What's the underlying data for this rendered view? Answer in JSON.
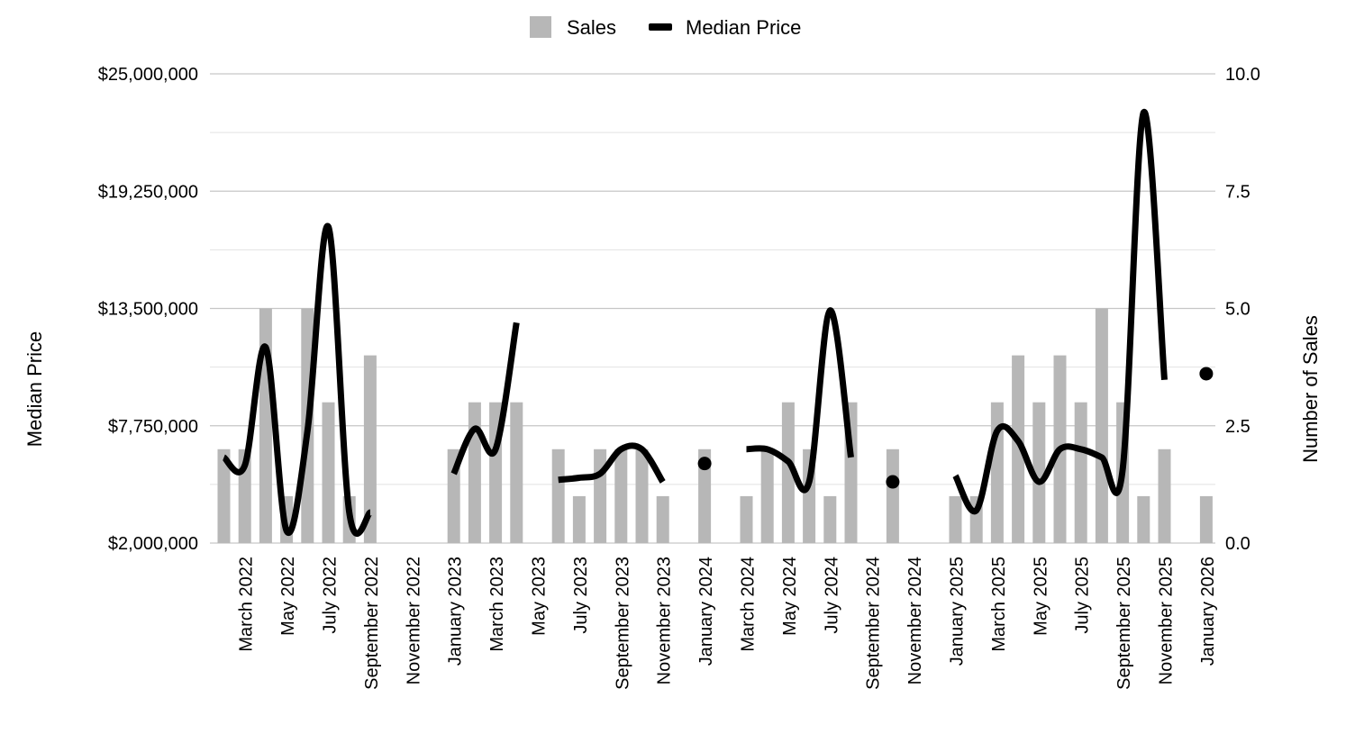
{
  "chart_data": {
    "type": "bar",
    "combo": "bar+line",
    "categories": [
      "Feb 2022",
      "March 2022",
      "Apr 2022",
      "May 2022",
      "Jun 2022",
      "July 2022",
      "Aug 2022",
      "September 2022",
      "Oct 2022",
      "November 2022",
      "Dec 2022",
      "January 2023",
      "Feb 2023",
      "March 2023",
      "Apr 2023",
      "May 2023",
      "Jun 2023",
      "July 2023",
      "Aug 2023",
      "September 2023",
      "Oct 2023",
      "November 2023",
      "Dec 2023",
      "January 2024",
      "Feb 2024",
      "March 2024",
      "Apr 2024",
      "May 2024",
      "Jun 2024",
      "July 2024",
      "Aug 2024",
      "September 2024",
      "Oct 2024",
      "November 2024",
      "Dec 2024",
      "January 2025",
      "Feb 2025",
      "March 2025",
      "Apr 2025",
      "May 2025",
      "Jun 2025",
      "July 2025",
      "Aug 2025",
      "September 2025",
      "Oct 2025",
      "November 2025",
      "Dec 2025",
      "January 2026"
    ],
    "x_tick_labels": [
      "March 2022",
      "May 2022",
      "July 2022",
      "September 2022",
      "November 2022",
      "January 2023",
      "March 2023",
      "May 2023",
      "July 2023",
      "September 2023",
      "November 2023",
      "January 2024",
      "March 2024",
      "May 2024",
      "July 2024",
      "September 2024",
      "November 2024",
      "January 2025",
      "March 2025",
      "May 2025",
      "July 2025",
      "September 2025",
      "November 2025",
      "January 2026"
    ],
    "series": [
      {
        "name": "Sales",
        "type": "bar",
        "axis": "right",
        "color": "#b7b7b7",
        "values": [
          2,
          2,
          5,
          1,
          5,
          3,
          1,
          4,
          null,
          null,
          null,
          2,
          3,
          3,
          3,
          null,
          2,
          1,
          2,
          2,
          2,
          1,
          null,
          2,
          null,
          1,
          2,
          3,
          2,
          1,
          3,
          null,
          2,
          null,
          null,
          1,
          1,
          3,
          4,
          3,
          4,
          3,
          5,
          3,
          1,
          2,
          null,
          1
        ]
      },
      {
        "name": "Median Price",
        "type": "line",
        "axis": "left",
        "color": "#000000",
        "values": [
          6200000,
          5800000,
          11600000,
          2600000,
          7500000,
          17500000,
          3500000,
          3500000,
          null,
          null,
          null,
          5400000,
          7600000,
          6600000,
          12800000,
          null,
          5100000,
          5200000,
          5400000,
          6600000,
          6600000,
          5000000,
          null,
          5900000,
          null,
          6600000,
          6600000,
          6000000,
          5000000,
          13400000,
          6200000,
          null,
          5000000,
          null,
          null,
          5300000,
          3600000,
          7500000,
          7000000,
          5000000,
          6600000,
          6600000,
          6200000,
          5600000,
          23100000,
          10000000,
          null,
          10300000
        ]
      }
    ],
    "y_left": {
      "label": "Median Price",
      "ylim": [
        2000000,
        25000000
      ],
      "ticks": [
        "$2,000,000",
        "$7,750,000",
        "$13,500,000",
        "$19,250,000",
        "$25,000,000"
      ]
    },
    "y_right": {
      "label": "Number of Sales",
      "ylim": [
        0,
        10
      ],
      "ticks": [
        "0.0",
        "2.5",
        "5.0",
        "7.5",
        "10.0"
      ]
    },
    "legend": {
      "placement": "top-center",
      "items": [
        "Sales",
        "Median Price"
      ]
    },
    "grid": true
  }
}
